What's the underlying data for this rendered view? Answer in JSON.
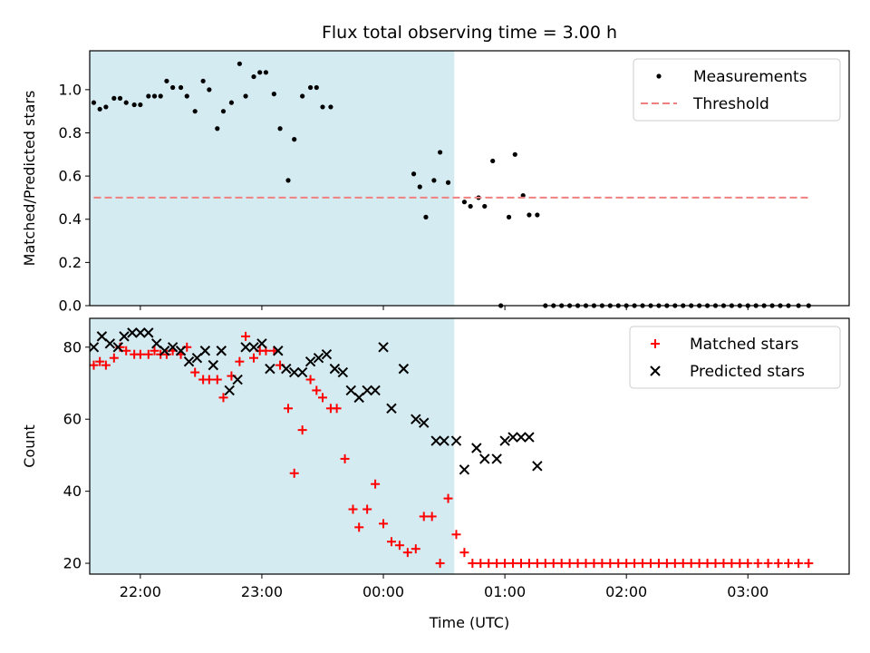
{
  "chart_data": {
    "title": "Flux total observing time = 3.00 h",
    "xlabel": "Time (UTC)",
    "x_unit": "UTC time (HH:MM), night crossing midnight",
    "x_range": [
      "21:35",
      "03:50"
    ],
    "x_ticks": [
      "22:00",
      "23:00",
      "00:00",
      "01:00",
      "02:00",
      "03:00"
    ],
    "shaded_interval": {
      "start": "21:35",
      "end": "00:35",
      "color": "#add8e6"
    },
    "panels": [
      {
        "type": "scatter",
        "ylabel": "Matched/Predicted stars",
        "ylim": [
          0,
          1.18
        ],
        "y_ticks": [
          "0.0",
          "0.2",
          "0.4",
          "0.6",
          "0.8",
          "1.0"
        ],
        "legend": "top-right",
        "series": [
          {
            "name": "Measurements",
            "marker": "dot",
            "color": "#000000",
            "points": [
              [
                "21:37",
                0.94
              ],
              [
                "21:40",
                0.91
              ],
              [
                "21:43",
                0.92
              ],
              [
                "21:47",
                0.96
              ],
              [
                "21:50",
                0.96
              ],
              [
                "21:53",
                0.94
              ],
              [
                "21:57",
                0.93
              ],
              [
                "22:00",
                0.93
              ],
              [
                "22:04",
                0.97
              ],
              [
                "22:07",
                0.97
              ],
              [
                "22:10",
                0.97
              ],
              [
                "22:13",
                1.04
              ],
              [
                "22:16",
                1.01
              ],
              [
                "22:20",
                1.01
              ],
              [
                "22:23",
                0.97
              ],
              [
                "22:27",
                0.9
              ],
              [
                "22:31",
                1.04
              ],
              [
                "22:34",
                1.0
              ],
              [
                "22:38",
                0.82
              ],
              [
                "22:41",
                0.9
              ],
              [
                "22:45",
                0.94
              ],
              [
                "22:49",
                1.12
              ],
              [
                "22:52",
                0.97
              ],
              [
                "22:56",
                1.06
              ],
              [
                "22:59",
                1.08
              ],
              [
                "23:02",
                1.08
              ],
              [
                "23:06",
                0.98
              ],
              [
                "23:09",
                0.82
              ],
              [
                "23:13",
                0.58
              ],
              [
                "23:16",
                0.77
              ],
              [
                "23:20",
                0.97
              ],
              [
                "23:24",
                1.01
              ],
              [
                "23:27",
                1.01
              ],
              [
                "23:30",
                0.92
              ],
              [
                "23:34",
                0.92
              ],
              [
                "00:15",
                0.61
              ],
              [
                "00:18",
                0.55
              ],
              [
                "00:21",
                0.41
              ],
              [
                "00:25",
                0.58
              ],
              [
                "00:28",
                0.71
              ],
              [
                "00:32",
                0.57
              ],
              [
                "00:40",
                0.48
              ],
              [
                "00:43",
                0.46
              ],
              [
                "00:47",
                0.5
              ],
              [
                "00:50",
                0.46
              ],
              [
                "00:54",
                0.67
              ],
              [
                "00:58",
                0.0
              ],
              [
                "01:02",
                0.41
              ],
              [
                "01:05",
                0.7
              ],
              [
                "01:09",
                0.51
              ],
              [
                "01:12",
                0.42
              ],
              [
                "01:16",
                0.42
              ],
              [
                "01:20",
                0.0
              ],
              [
                "01:24",
                0.0
              ],
              [
                "01:28",
                0.0
              ],
              [
                "01:32",
                0.0
              ],
              [
                "01:36",
                0.0
              ],
              [
                "01:40",
                0.0
              ],
              [
                "01:44",
                0.0
              ],
              [
                "01:48",
                0.0
              ],
              [
                "01:52",
                0.0
              ],
              [
                "01:56",
                0.0
              ],
              [
                "02:00",
                0.0
              ],
              [
                "02:04",
                0.0
              ],
              [
                "02:08",
                0.0
              ],
              [
                "02:12",
                0.0
              ],
              [
                "02:16",
                0.0
              ],
              [
                "02:20",
                0.0
              ],
              [
                "02:24",
                0.0
              ],
              [
                "02:28",
                0.0
              ],
              [
                "02:32",
                0.0
              ],
              [
                "02:36",
                0.0
              ],
              [
                "02:40",
                0.0
              ],
              [
                "02:44",
                0.0
              ],
              [
                "02:48",
                0.0
              ],
              [
                "02:52",
                0.0
              ],
              [
                "02:56",
                0.0
              ],
              [
                "03:00",
                0.0
              ],
              [
                "03:04",
                0.0
              ],
              [
                "03:08",
                0.0
              ],
              [
                "03:12",
                0.0
              ],
              [
                "03:16",
                0.0
              ],
              [
                "03:20",
                0.0
              ],
              [
                "03:25",
                0.0
              ],
              [
                "03:30",
                0.0
              ]
            ]
          },
          {
            "name": "Threshold",
            "marker": "dashed-line",
            "color": "#f08080",
            "points": [
              [
                "21:37",
                0.5
              ],
              [
                "03:30",
                0.5
              ]
            ]
          }
        ]
      },
      {
        "type": "scatter",
        "ylabel": "Count",
        "ylim": [
          17,
          88
        ],
        "y_ticks": [
          "20",
          "40",
          "60",
          "80"
        ],
        "legend": "top-right",
        "series": [
          {
            "name": "Matched stars",
            "marker": "plus",
            "color": "#ff0000",
            "points": [
              [
                "21:37",
                75
              ],
              [
                "21:40",
                76
              ],
              [
                "21:43",
                75
              ],
              [
                "21:47",
                77
              ],
              [
                "21:50",
                80
              ],
              [
                "21:53",
                79
              ],
              [
                "21:57",
                78
              ],
              [
                "22:00",
                78
              ],
              [
                "22:04",
                78
              ],
              [
                "22:07",
                79
              ],
              [
                "22:10",
                78
              ],
              [
                "22:13",
                78
              ],
              [
                "22:16",
                79
              ],
              [
                "22:20",
                78
              ],
              [
                "22:23",
                80
              ],
              [
                "22:27",
                73
              ],
              [
                "22:31",
                71
              ],
              [
                "22:34",
                71
              ],
              [
                "22:38",
                71
              ],
              [
                "22:41",
                66
              ],
              [
                "22:45",
                72
              ],
              [
                "22:49",
                76
              ],
              [
                "22:52",
                83
              ],
              [
                "22:56",
                77
              ],
              [
                "22:59",
                79
              ],
              [
                "23:02",
                79
              ],
              [
                "23:06",
                79
              ],
              [
                "23:09",
                75
              ],
              [
                "23:13",
                63
              ],
              [
                "23:16",
                45
              ],
              [
                "23:20",
                57
              ],
              [
                "23:24",
                71
              ],
              [
                "23:27",
                68
              ],
              [
                "23:30",
                66
              ],
              [
                "23:34",
                63
              ],
              [
                "23:37",
                63
              ],
              [
                "23:41",
                49
              ],
              [
                "23:45",
                35
              ],
              [
                "23:48",
                30
              ],
              [
                "23:52",
                35
              ],
              [
                "23:56",
                42
              ],
              [
                "00:00",
                31
              ],
              [
                "00:04",
                26
              ],
              [
                "00:08",
                25
              ],
              [
                "00:12",
                23
              ],
              [
                "00:16",
                24
              ],
              [
                "00:20",
                33
              ],
              [
                "00:24",
                33
              ],
              [
                "00:28",
                20
              ],
              [
                "00:32",
                38
              ],
              [
                "00:36",
                28
              ],
              [
                "00:40",
                23
              ],
              [
                "00:44",
                20
              ],
              [
                "00:48",
                20
              ],
              [
                "00:52",
                20
              ],
              [
                "00:56",
                20
              ],
              [
                "01:00",
                20
              ],
              [
                "01:04",
                20
              ],
              [
                "01:08",
                20
              ],
              [
                "01:12",
                20
              ],
              [
                "01:16",
                20
              ],
              [
                "01:20",
                20
              ],
              [
                "01:24",
                20
              ],
              [
                "01:28",
                20
              ],
              [
                "01:32",
                20
              ],
              [
                "01:36",
                20
              ],
              [
                "01:40",
                20
              ],
              [
                "01:44",
                20
              ],
              [
                "01:48",
                20
              ],
              [
                "01:52",
                20
              ],
              [
                "01:56",
                20
              ],
              [
                "02:00",
                20
              ],
              [
                "02:04",
                20
              ],
              [
                "02:08",
                20
              ],
              [
                "02:12",
                20
              ],
              [
                "02:16",
                20
              ],
              [
                "02:20",
                20
              ],
              [
                "02:24",
                20
              ],
              [
                "02:28",
                20
              ],
              [
                "02:32",
                20
              ],
              [
                "02:36",
                20
              ],
              [
                "02:40",
                20
              ],
              [
                "02:44",
                20
              ],
              [
                "02:48",
                20
              ],
              [
                "02:52",
                20
              ],
              [
                "02:56",
                20
              ],
              [
                "03:00",
                20
              ],
              [
                "03:05",
                20
              ],
              [
                "03:10",
                20
              ],
              [
                "03:15",
                20
              ],
              [
                "03:20",
                20
              ],
              [
                "03:25",
                20
              ],
              [
                "03:30",
                20
              ]
            ]
          },
          {
            "name": "Predicted stars",
            "marker": "x",
            "color": "#000000",
            "points": [
              [
                "21:37",
                80
              ],
              [
                "21:41",
                83
              ],
              [
                "21:45",
                81
              ],
              [
                "21:49",
                80
              ],
              [
                "21:52",
                83
              ],
              [
                "21:56",
                84
              ],
              [
                "22:00",
                84
              ],
              [
                "22:04",
                84
              ],
              [
                "22:08",
                81
              ],
              [
                "22:12",
                79
              ],
              [
                "22:16",
                80
              ],
              [
                "22:20",
                79
              ],
              [
                "22:24",
                76
              ],
              [
                "22:28",
                77
              ],
              [
                "22:32",
                79
              ],
              [
                "22:36",
                75
              ],
              [
                "22:40",
                79
              ],
              [
                "22:44",
                68
              ],
              [
                "22:48",
                71
              ],
              [
                "22:52",
                80
              ],
              [
                "22:56",
                80
              ],
              [
                "23:00",
                81
              ],
              [
                "23:04",
                74
              ],
              [
                "23:08",
                79
              ],
              [
                "23:12",
                74
              ],
              [
                "23:16",
                73
              ],
              [
                "23:20",
                73
              ],
              [
                "23:24",
                76
              ],
              [
                "23:28",
                77
              ],
              [
                "23:32",
                78
              ],
              [
                "23:36",
                74
              ],
              [
                "23:40",
                73
              ],
              [
                "23:44",
                68
              ],
              [
                "23:48",
                66
              ],
              [
                "23:52",
                68
              ],
              [
                "23:56",
                68
              ],
              [
                "00:00",
                80
              ],
              [
                "00:04",
                63
              ],
              [
                "00:10",
                74
              ],
              [
                "00:16",
                60
              ],
              [
                "00:20",
                59
              ],
              [
                "00:26",
                54
              ],
              [
                "00:30",
                54
              ],
              [
                "00:36",
                54
              ],
              [
                "00:40",
                46
              ],
              [
                "00:46",
                52
              ],
              [
                "00:50",
                49
              ],
              [
                "00:56",
                49
              ],
              [
                "01:00",
                54
              ],
              [
                "01:04",
                55
              ],
              [
                "01:08",
                55
              ],
              [
                "01:12",
                55
              ],
              [
                "01:16",
                47
              ]
            ]
          }
        ]
      }
    ]
  }
}
